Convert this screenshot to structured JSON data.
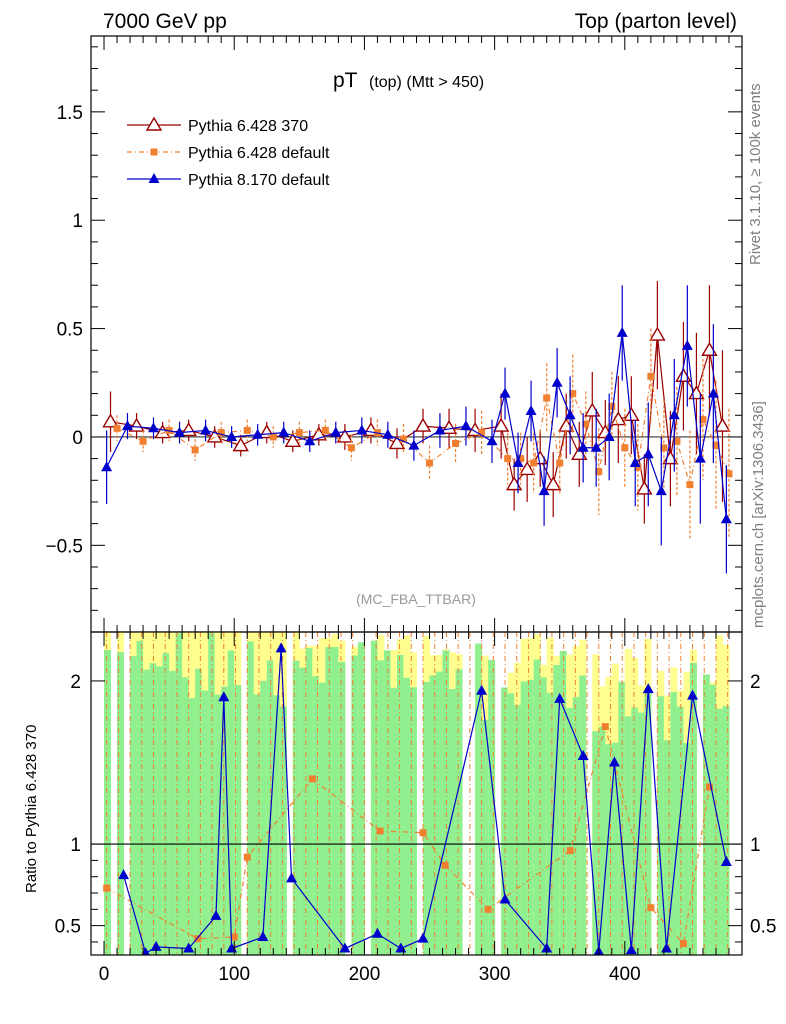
{
  "header": {
    "left": "7000 GeV pp",
    "right": "Top (parton level)"
  },
  "side_labels": {
    "top": "Rivet 3.1.10, ≥ 100k events",
    "bottom": "mcplots.cern.ch [arXiv:1306.3436]"
  },
  "chart_data": [
    {
      "type": "scatter",
      "title_main": "pT",
      "title_sub": "(top) (Mtt > 450)",
      "watermark": "(MC_FBA_TTBAR)",
      "xlim": [
        -10,
        490
      ],
      "ylim": [
        -0.9,
        1.85
      ],
      "x_ticks": [
        0,
        100,
        200,
        300,
        400
      ],
      "y_ticks": [
        -0.5,
        0,
        0.5,
        1,
        1.5
      ],
      "y_tick_labels": [
        "−0.5",
        "0",
        "0.5",
        "1",
        "1.5"
      ],
      "legend_position": "top-left",
      "series": [
        {
          "name": "Pythia 6.428 370",
          "color": "#9a0000",
          "marker": "open-triangle",
          "x": [
            5,
            25,
            45,
            65,
            85,
            105,
            125,
            145,
            165,
            185,
            205,
            225,
            245,
            265,
            285,
            305,
            315,
            325,
            335,
            345,
            355,
            365,
            375,
            385,
            395,
            405,
            415,
            425,
            435,
            445,
            455,
            465,
            475
          ],
          "y": [
            0.07,
            0.05,
            0.02,
            0.03,
            0.0,
            -0.04,
            0.02,
            -0.02,
            0.01,
            0.0,
            0.03,
            -0.03,
            0.05,
            0.04,
            0.03,
            0.05,
            -0.22,
            -0.15,
            -0.1,
            -0.22,
            0.05,
            -0.08,
            0.12,
            0.02,
            0.08,
            0.1,
            -0.24,
            0.47,
            -0.1,
            0.28,
            0.2,
            0.4,
            0.05
          ],
          "err": [
            0.14,
            0.06,
            0.05,
            0.05,
            0.05,
            0.05,
            0.05,
            0.05,
            0.05,
            0.06,
            0.06,
            0.07,
            0.08,
            0.09,
            0.1,
            0.15,
            0.12,
            0.15,
            0.13,
            0.15,
            0.15,
            0.15,
            0.18,
            0.15,
            0.2,
            0.18,
            0.16,
            0.25,
            0.22,
            0.25,
            0.28,
            0.3,
            0.35
          ]
        },
        {
          "name": "Pythia 6.428 default",
          "color": "#f08030",
          "marker": "filled-square",
          "x": [
            10,
            30,
            50,
            70,
            90,
            110,
            130,
            150,
            170,
            190,
            210,
            230,
            250,
            270,
            290,
            310,
            320,
            330,
            340,
            350,
            360,
            370,
            380,
            390,
            400,
            410,
            420,
            430,
            440,
            450,
            460,
            470,
            480
          ],
          "y": [
            0.04,
            -0.02,
            0.03,
            -0.06,
            0.02,
            0.03,
            0.0,
            0.02,
            0.03,
            -0.05,
            0.02,
            -0.01,
            -0.12,
            -0.03,
            0.02,
            -0.1,
            -0.1,
            -0.12,
            0.18,
            -0.12,
            0.2,
            0.06,
            -0.16,
            0.14,
            -0.05,
            -0.14,
            0.28,
            -0.05,
            -0.02,
            -0.22,
            0.08,
            -0.04,
            -0.17
          ],
          "err": [
            0.06,
            0.05,
            0.05,
            0.05,
            0.05,
            0.05,
            0.05,
            0.05,
            0.05,
            0.06,
            0.06,
            0.07,
            0.08,
            0.09,
            0.1,
            0.12,
            0.12,
            0.14,
            0.16,
            0.15,
            0.18,
            0.15,
            0.2,
            0.16,
            0.18,
            0.2,
            0.22,
            0.22,
            0.25,
            0.25,
            0.28,
            0.3,
            0.3
          ]
        },
        {
          "name": "Pythia 8.170 default",
          "color": "#0000cc",
          "marker": "filled-triangle",
          "x": [
            2,
            18,
            38,
            58,
            78,
            98,
            118,
            138,
            158,
            178,
            198,
            218,
            238,
            258,
            278,
            298,
            308,
            318,
            328,
            338,
            348,
            358,
            368,
            378,
            388,
            398,
            408,
            418,
            428,
            438,
            448,
            458,
            468,
            478
          ],
          "y": [
            -0.14,
            0.05,
            0.04,
            0.02,
            0.03,
            0.0,
            0.01,
            0.02,
            -0.02,
            0.02,
            0.03,
            0.01,
            -0.04,
            0.03,
            0.05,
            -0.02,
            0.2,
            -0.12,
            0.12,
            -0.25,
            0.25,
            0.1,
            -0.05,
            -0.05,
            0.0,
            0.48,
            -0.12,
            -0.08,
            -0.25,
            0.1,
            0.42,
            -0.1,
            0.2,
            -0.38
          ],
          "err": [
            0.17,
            0.06,
            0.05,
            0.05,
            0.05,
            0.05,
            0.05,
            0.05,
            0.05,
            0.05,
            0.06,
            0.06,
            0.07,
            0.08,
            0.09,
            0.1,
            0.12,
            0.14,
            0.14,
            0.16,
            0.16,
            0.18,
            0.16,
            0.18,
            0.2,
            0.22,
            0.2,
            0.24,
            0.25,
            0.26,
            0.28,
            0.3,
            0.32,
            0.25
          ]
        }
      ]
    },
    {
      "type": "scatter",
      "ylabel": "Ratio to Pythia 6.428 370",
      "xlim": [
        -10,
        490
      ],
      "ylim": [
        0.32,
        2.3
      ],
      "x_ticks": [
        0,
        100,
        200,
        300,
        400
      ],
      "y_ticks": [
        0.5,
        1,
        2
      ],
      "y_tick_labels": [
        "0.5",
        "1",
        "2"
      ],
      "band_colors": {
        "inner": "#90f090",
        "outer": "#ffff90"
      },
      "series": [
        {
          "name": "Pythia 6.428 default",
          "color": "#f08030",
          "x": [
            2,
            72,
            100,
            110,
            160,
            212,
            245,
            262,
            295,
            358,
            385,
            420,
            445,
            465
          ],
          "y": [
            0.73,
            0.42,
            0.43,
            0.92,
            1.4,
            1.08,
            1.07,
            0.87,
            0.6,
            0.96,
            1.72,
            0.61,
            0.39,
            1.35
          ]
        },
        {
          "name": "Pythia 8.170 default",
          "color": "#0000cc",
          "x": [
            15,
            32,
            40,
            65,
            86,
            92,
            98,
            122,
            136,
            144,
            185,
            210,
            228,
            245,
            290,
            308,
            340,
            350,
            368,
            380,
            392,
            405,
            418,
            432,
            452,
            478
          ],
          "y": [
            0.81,
            0.33,
            0.37,
            0.36,
            0.56,
            1.9,
            0.36,
            0.43,
            2.2,
            0.79,
            0.36,
            0.45,
            0.36,
            0.42,
            1.94,
            0.66,
            0.36,
            1.89,
            1.54,
            0.34,
            1.5,
            0.35,
            1.95,
            0.36,
            1.91,
            0.89
          ]
        }
      ]
    }
  ]
}
